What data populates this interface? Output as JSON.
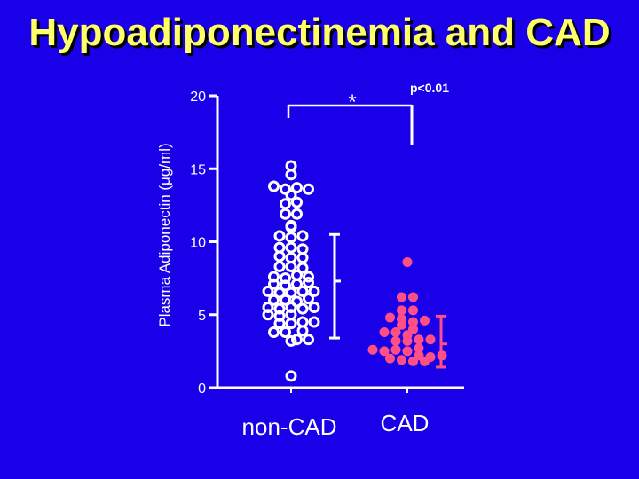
{
  "title": "Hypoadiponectinemia and CAD",
  "colors": {
    "background": "#1a00e8",
    "title": "#ffff66",
    "axis": "#ffffff",
    "non_cad_marker": "#ffffff",
    "cad_marker": "#ff4f86"
  },
  "chart_data": {
    "type": "scatter",
    "ylabel": "Plasma Adiponectin (μg/ml)",
    "ylim": [
      0,
      20
    ],
    "yticks": [
      0,
      5,
      10,
      15,
      20
    ],
    "categories": [
      "non-CAD",
      "CAD"
    ],
    "grid": false,
    "series": [
      {
        "name": "non-CAD",
        "marker": "open-circle",
        "values": [
          15.2,
          14.6,
          13.8,
          13.6,
          13.7,
          13.6,
          13.2,
          12.6,
          12.7,
          11.9,
          11.9,
          11.1,
          11.0,
          10.4,
          10.3,
          10.4,
          9.6,
          9.6,
          9.5,
          9.0,
          8.9,
          8.9,
          8.3,
          8.3,
          8.2,
          7.6,
          7.5,
          7.7,
          7.6,
          7.1,
          7.0,
          7.1,
          7.2,
          6.6,
          6.5,
          6.5,
          6.6,
          6.6,
          6.0,
          6.0,
          5.9,
          6.1,
          5.5,
          5.4,
          5.5,
          5.4,
          5.5,
          5.0,
          4.9,
          5.0,
          4.4,
          4.5,
          4.4,
          4.5,
          3.8,
          3.9,
          3.8,
          3.3,
          3.3,
          3.2,
          0.8
        ],
        "mean_sd": {
          "center": 7.3,
          "low": 3.4,
          "high": 10.5
        }
      },
      {
        "name": "CAD",
        "marker": "filled-circle",
        "values": [
          8.6,
          6.2,
          6.2,
          5.3,
          5.3,
          4.8,
          4.7,
          4.5,
          4.6,
          4.3,
          4.0,
          3.8,
          3.8,
          3.6,
          3.3,
          3.2,
          3.2,
          3.3,
          2.6,
          2.5,
          2.6,
          2.7,
          2.5,
          2.2,
          2.1,
          2.2,
          2.0,
          1.9,
          1.8,
          1.8
        ],
        "mean_sd": {
          "center": 3.0,
          "low": 1.4,
          "high": 4.9
        }
      }
    ],
    "annotations": {
      "significance_marker": "*",
      "p_value": "p<0.01"
    }
  }
}
